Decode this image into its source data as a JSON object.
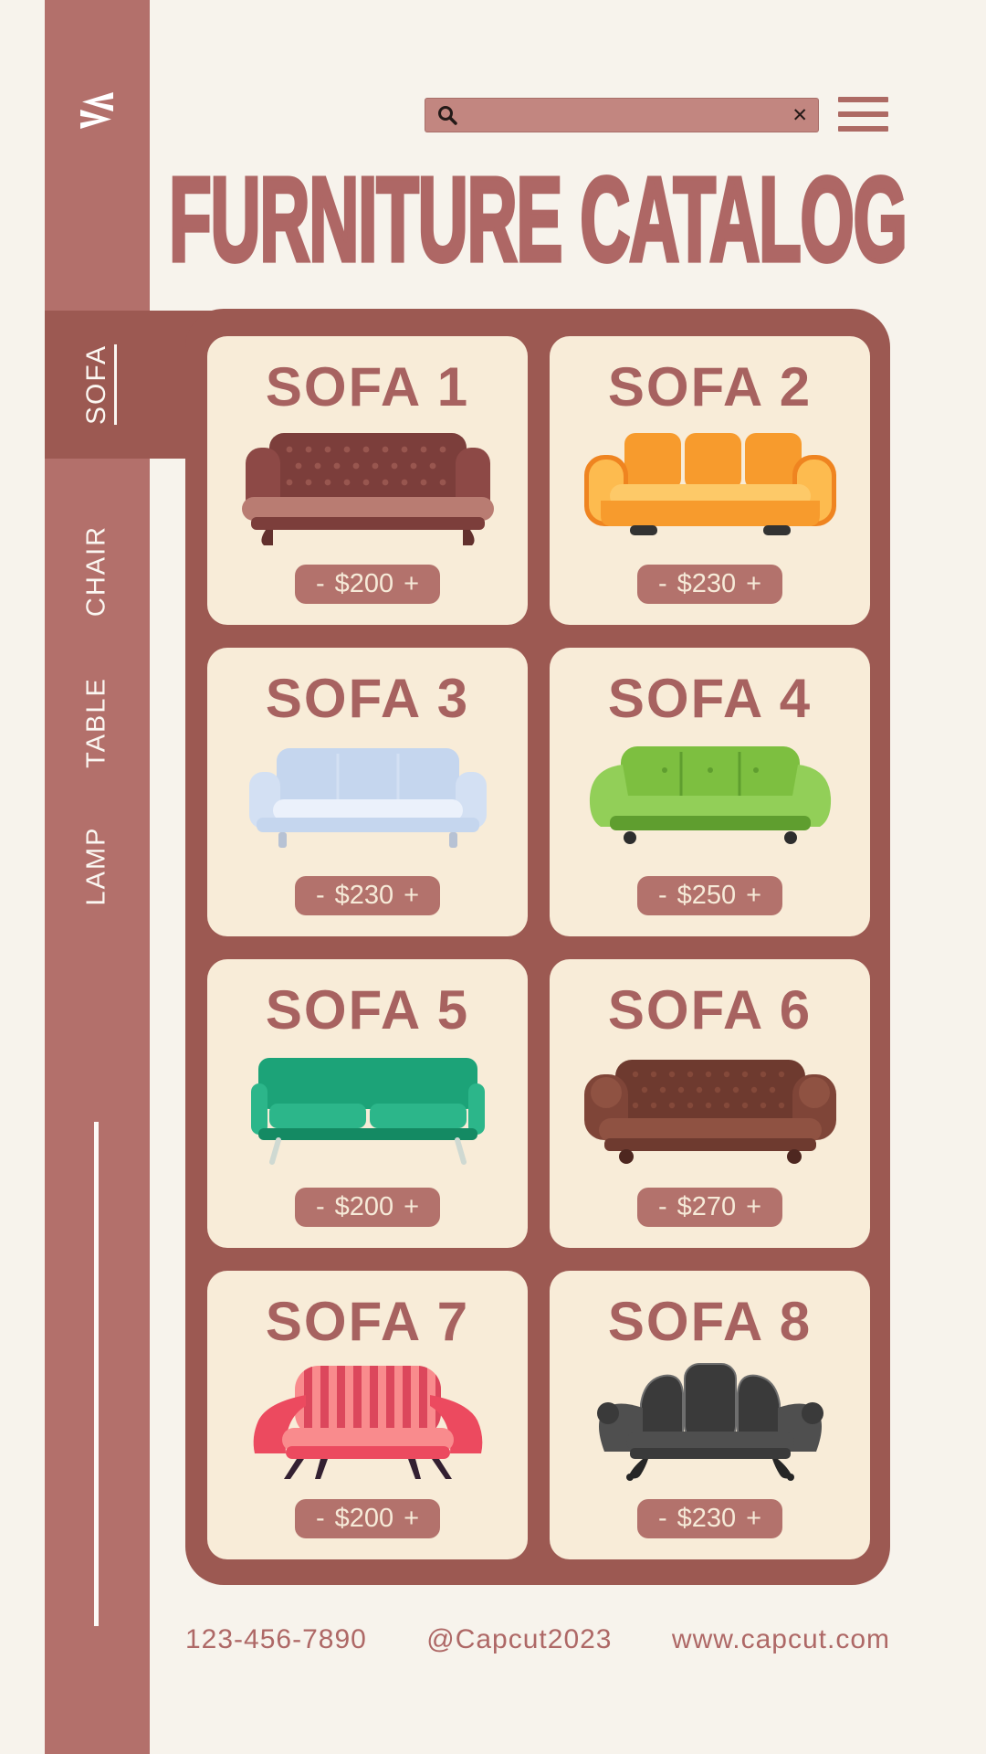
{
  "page": {
    "background": "#f7f3ec",
    "accent": "#9c5952",
    "sidebar_color": "#b3706b"
  },
  "sidebar": {
    "logo_icon": "capcut-logo",
    "tabs": [
      {
        "label": "SOFA",
        "active": true
      },
      {
        "label": "CHAIR",
        "active": false
      },
      {
        "label": "TABLE",
        "active": false
      },
      {
        "label": "LAMP",
        "active": false
      }
    ]
  },
  "header": {
    "title": "FURNITURE CATALOG",
    "search": {
      "value": "",
      "placeholder": "",
      "search_icon": "magnifier",
      "clear_icon": "✕"
    },
    "menu_icon": "hamburger"
  },
  "catalog": {
    "stepper": {
      "decrease": "-",
      "increase": "+"
    },
    "items": [
      {
        "name": "SOFA 1",
        "price": "$200",
        "style": "chesterfield",
        "colors": {
          "back": "#7c3e3b",
          "dot": "#98564f",
          "arm": "#8d4946",
          "seat": "#b97c72",
          "feet": "#62302d"
        }
      },
      {
        "name": "SOFA 2",
        "price": "$230",
        "style": "modern",
        "colors": {
          "main": "#f79b2d",
          "light": "#fdbb4f",
          "lighter": "#fdc968",
          "dark": "#ef8420",
          "feet": "#333333"
        }
      },
      {
        "name": "SOFA 3",
        "price": "$230",
        "style": "boxy",
        "colors": {
          "main": "#c5d6ee",
          "mid": "#d3e0f3",
          "seat": "#ebf1fb",
          "leg": "#b7c2d4"
        }
      },
      {
        "name": "SOFA 4",
        "price": "$250",
        "style": "curvy",
        "colors": {
          "main": "#7dbf40",
          "light": "#92cf58",
          "dark": "#5f9e2f",
          "feet": "#2d2d2d"
        }
      },
      {
        "name": "SOFA 5",
        "price": "$200",
        "style": "midcentury",
        "colors": {
          "main": "#1ca378",
          "light": "#2cb68a",
          "dark": "#148a63",
          "leg": "#cfd9d2"
        }
      },
      {
        "name": "SOFA 6",
        "price": "$270",
        "style": "chesterfield2",
        "colors": {
          "back": "#6e3a2f",
          "dot": "#84493a",
          "mid": "#7f4538",
          "light": "#8f5242",
          "feet": "#4e2720"
        }
      },
      {
        "name": "SOFA 7",
        "price": "$200",
        "style": "loveseat",
        "colors": {
          "main": "#ec4a5f",
          "light": "#f98b8d",
          "stripe": "#d83b54",
          "feet": "#332031"
        }
      },
      {
        "name": "SOFA 8",
        "price": "$230",
        "style": "vintage",
        "colors": {
          "dark": "#3a3a3a",
          "mid": "#4f4f4f",
          "light": "#6e6e6e",
          "feet": "#262626"
        }
      }
    ]
  },
  "footer": {
    "phone": "123-456-7890",
    "social": "@Capcut2023",
    "website": "www.capcut.com"
  }
}
